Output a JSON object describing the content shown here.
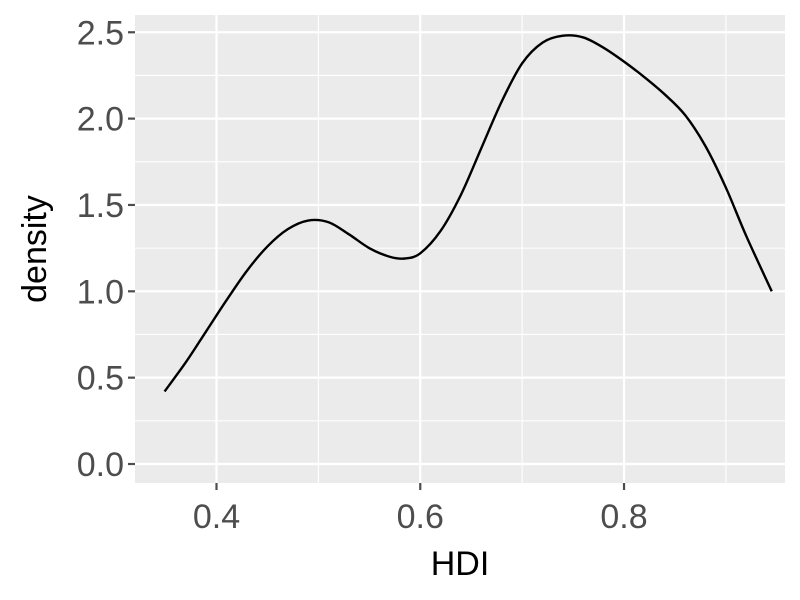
{
  "chart_data": {
    "type": "line",
    "title": "",
    "xlabel": "HDI",
    "ylabel": "density",
    "xlim": [
      0.32,
      0.958
    ],
    "ylim": [
      -0.11,
      2.6
    ],
    "x_ticks": [
      0.4,
      0.6,
      0.8
    ],
    "x_tick_labels": [
      "0.4",
      "0.6",
      "0.8"
    ],
    "y_ticks": [
      0.0,
      0.5,
      1.0,
      1.5,
      2.0,
      2.5
    ],
    "y_tick_labels": [
      "0.0",
      "0.5",
      "1.0",
      "1.5",
      "2.0",
      "2.5"
    ],
    "grid": true,
    "legend": "none",
    "series": [
      {
        "x": [
          0.349,
          0.37,
          0.39,
          0.41,
          0.43,
          0.45,
          0.47,
          0.49,
          0.51,
          0.53,
          0.55,
          0.57,
          0.585,
          0.6,
          0.62,
          0.64,
          0.66,
          0.68,
          0.7,
          0.72,
          0.74,
          0.76,
          0.78,
          0.8,
          0.82,
          0.84,
          0.86,
          0.88,
          0.9,
          0.92,
          0.945
        ],
        "y": [
          0.42,
          0.59,
          0.77,
          0.95,
          1.12,
          1.26,
          1.36,
          1.41,
          1.4,
          1.33,
          1.25,
          1.2,
          1.19,
          1.22,
          1.35,
          1.56,
          1.83,
          2.1,
          2.32,
          2.44,
          2.48,
          2.47,
          2.41,
          2.33,
          2.24,
          2.14,
          2.02,
          1.84,
          1.6,
          1.32,
          1.0
        ]
      }
    ],
    "colors": {
      "panel": "#ebebeb",
      "grid": "#ffffff",
      "line": "#000000",
      "tick": "#4d4d4d"
    }
  }
}
